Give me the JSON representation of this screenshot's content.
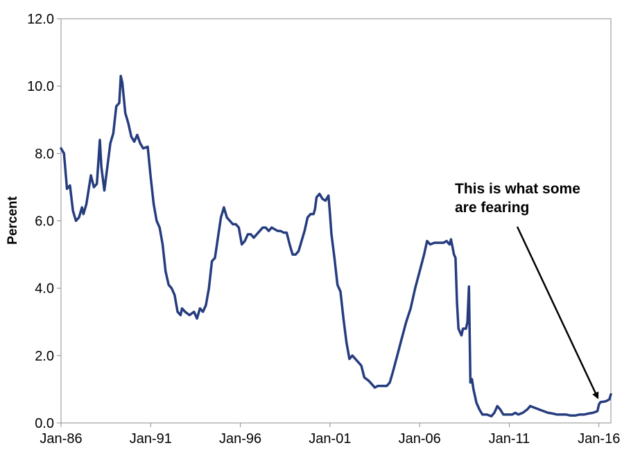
{
  "chart_data": {
    "type": "line",
    "title": "",
    "xlabel": "",
    "ylabel": "Percent",
    "ylim": [
      0,
      12
    ],
    "xlim": [
      "1986-01",
      "2016-09"
    ],
    "grid": false,
    "legend": "none",
    "yticks": [
      "0.0",
      "2.0",
      "4.0",
      "6.0",
      "8.0",
      "10.0",
      "12.0"
    ],
    "xticks": [
      "Jan-86",
      "Jan-91",
      "Jan-96",
      "Jan-01",
      "Jan-06",
      "Jan-11",
      "Jan-16"
    ],
    "annotation": {
      "lines": [
        "This is what some",
        "are fearing"
      ],
      "points_to": {
        "x": "2016-03",
        "y": 0.62
      }
    },
    "series": [
      {
        "color": "#253c7e",
        "points": [
          [
            "1986-01",
            8.15
          ],
          [
            "1986-03",
            8.0
          ],
          [
            "1986-05",
            6.95
          ],
          [
            "1986-07",
            7.05
          ],
          [
            "1986-09",
            6.3
          ],
          [
            "1986-11",
            6.0
          ],
          [
            "1987-01",
            6.1
          ],
          [
            "1987-03",
            6.4
          ],
          [
            "1987-04",
            6.2
          ],
          [
            "1987-06",
            6.5
          ],
          [
            "1987-09",
            7.35
          ],
          [
            "1987-11",
            7.0
          ],
          [
            "1988-01",
            7.1
          ],
          [
            "1988-03",
            8.4
          ],
          [
            "1988-04",
            7.6
          ],
          [
            "1988-06",
            6.9
          ],
          [
            "1988-08",
            7.6
          ],
          [
            "1988-10",
            8.3
          ],
          [
            "1988-12",
            8.6
          ],
          [
            "1989-02",
            9.4
          ],
          [
            "1989-04",
            9.5
          ],
          [
            "1989-05",
            10.3
          ],
          [
            "1989-06",
            10.1
          ],
          [
            "1989-08",
            9.2
          ],
          [
            "1989-10",
            8.9
          ],
          [
            "1989-12",
            8.5
          ],
          [
            "1990-02",
            8.35
          ],
          [
            "1990-04",
            8.55
          ],
          [
            "1990-06",
            8.3
          ],
          [
            "1990-08",
            8.15
          ],
          [
            "1990-11",
            8.2
          ],
          [
            "1991-01",
            7.3
          ],
          [
            "1991-03",
            6.5
          ],
          [
            "1991-05",
            6.0
          ],
          [
            "1991-07",
            5.8
          ],
          [
            "1991-09",
            5.3
          ],
          [
            "1991-11",
            4.5
          ],
          [
            "1992-01",
            4.1
          ],
          [
            "1992-03",
            4.0
          ],
          [
            "1992-05",
            3.8
          ],
          [
            "1992-07",
            3.3
          ],
          [
            "1992-09",
            3.2
          ],
          [
            "1992-10",
            3.4
          ],
          [
            "1992-12",
            3.3
          ],
          [
            "1993-03",
            3.2
          ],
          [
            "1993-06",
            3.3
          ],
          [
            "1993-08",
            3.1
          ],
          [
            "1993-10",
            3.4
          ],
          [
            "1993-12",
            3.3
          ],
          [
            "1994-02",
            3.5
          ],
          [
            "1994-04",
            4.0
          ],
          [
            "1994-06",
            4.8
          ],
          [
            "1994-08",
            4.9
          ],
          [
            "1994-10",
            5.5
          ],
          [
            "1994-12",
            6.1
          ],
          [
            "1995-02",
            6.4
          ],
          [
            "1995-04",
            6.1
          ],
          [
            "1995-06",
            6.0
          ],
          [
            "1995-08",
            5.9
          ],
          [
            "1995-10",
            5.9
          ],
          [
            "1995-12",
            5.8
          ],
          [
            "1996-02",
            5.3
          ],
          [
            "1996-04",
            5.4
          ],
          [
            "1996-06",
            5.6
          ],
          [
            "1996-08",
            5.6
          ],
          [
            "1996-10",
            5.5
          ],
          [
            "1996-12",
            5.6
          ],
          [
            "1997-02",
            5.7
          ],
          [
            "1997-04",
            5.8
          ],
          [
            "1997-06",
            5.8
          ],
          [
            "1997-08",
            5.7
          ],
          [
            "1997-10",
            5.8
          ],
          [
            "1997-12",
            5.75
          ],
          [
            "1998-02",
            5.7
          ],
          [
            "1998-04",
            5.7
          ],
          [
            "1998-06",
            5.65
          ],
          [
            "1998-08",
            5.65
          ],
          [
            "1998-10",
            5.3
          ],
          [
            "1998-12",
            5.0
          ],
          [
            "1999-02",
            5.0
          ],
          [
            "1999-04",
            5.1
          ],
          [
            "1999-06",
            5.4
          ],
          [
            "1999-08",
            5.7
          ],
          [
            "1999-10",
            6.1
          ],
          [
            "1999-12",
            6.2
          ],
          [
            "2000-02",
            6.2
          ],
          [
            "2000-03",
            6.35
          ],
          [
            "2000-04",
            6.7
          ],
          [
            "2000-06",
            6.8
          ],
          [
            "2000-08",
            6.65
          ],
          [
            "2000-10",
            6.6
          ],
          [
            "2000-12",
            6.75
          ],
          [
            "2001-01",
            6.2
          ],
          [
            "2001-02",
            5.6
          ],
          [
            "2001-04",
            4.9
          ],
          [
            "2001-06",
            4.1
          ],
          [
            "2001-08",
            3.9
          ],
          [
            "2001-10",
            3.1
          ],
          [
            "2001-12",
            2.4
          ],
          [
            "2002-02",
            1.9
          ],
          [
            "2002-04",
            2.0
          ],
          [
            "2002-06",
            1.9
          ],
          [
            "2002-08",
            1.8
          ],
          [
            "2002-10",
            1.7
          ],
          [
            "2002-12",
            1.35
          ],
          [
            "2003-03",
            1.25
          ],
          [
            "2003-05",
            1.15
          ],
          [
            "2003-07",
            1.05
          ],
          [
            "2003-09",
            1.1
          ],
          [
            "2003-12",
            1.1
          ],
          [
            "2004-03",
            1.1
          ],
          [
            "2004-05",
            1.2
          ],
          [
            "2004-07",
            1.5
          ],
          [
            "2004-10",
            2.0
          ],
          [
            "2005-01",
            2.5
          ],
          [
            "2005-04",
            3.0
          ],
          [
            "2005-07",
            3.4
          ],
          [
            "2005-10",
            4.0
          ],
          [
            "2006-01",
            4.5
          ],
          [
            "2006-04",
            5.0
          ],
          [
            "2006-06",
            5.4
          ],
          [
            "2006-08",
            5.3
          ],
          [
            "2006-11",
            5.35
          ],
          [
            "2007-02",
            5.35
          ],
          [
            "2007-05",
            5.35
          ],
          [
            "2007-07",
            5.4
          ],
          [
            "2007-09",
            5.3
          ],
          [
            "2007-10",
            5.45
          ],
          [
            "2007-12",
            5.0
          ],
          [
            "2008-01",
            4.9
          ],
          [
            "2008-02",
            3.6
          ],
          [
            "2008-03",
            2.8
          ],
          [
            "2008-05",
            2.6
          ],
          [
            "2008-06",
            2.8
          ],
          [
            "2008-08",
            2.8
          ],
          [
            "2008-09",
            3.0
          ],
          [
            "2008-10",
            4.05
          ],
          [
            "2008-11",
            1.2
          ],
          [
            "2008-12",
            1.3
          ],
          [
            "2009-01",
            1.0
          ],
          [
            "2009-03",
            0.6
          ],
          [
            "2009-05",
            0.4
          ],
          [
            "2009-07",
            0.25
          ],
          [
            "2009-10",
            0.25
          ],
          [
            "2010-01",
            0.2
          ],
          [
            "2010-03",
            0.3
          ],
          [
            "2010-05",
            0.5
          ],
          [
            "2010-07",
            0.4
          ],
          [
            "2010-09",
            0.25
          ],
          [
            "2010-12",
            0.25
          ],
          [
            "2011-03",
            0.25
          ],
          [
            "2011-05",
            0.3
          ],
          [
            "2011-07",
            0.25
          ],
          [
            "2011-10",
            0.3
          ],
          [
            "2012-01",
            0.4
          ],
          [
            "2012-03",
            0.5
          ],
          [
            "2012-06",
            0.45
          ],
          [
            "2012-09",
            0.4
          ],
          [
            "2012-12",
            0.35
          ],
          [
            "2013-03",
            0.3
          ],
          [
            "2013-06",
            0.28
          ],
          [
            "2013-09",
            0.25
          ],
          [
            "2013-12",
            0.25
          ],
          [
            "2014-03",
            0.25
          ],
          [
            "2014-06",
            0.22
          ],
          [
            "2014-09",
            0.22
          ],
          [
            "2014-12",
            0.25
          ],
          [
            "2015-03",
            0.25
          ],
          [
            "2015-06",
            0.28
          ],
          [
            "2015-09",
            0.3
          ],
          [
            "2015-12",
            0.35
          ],
          [
            "2016-01",
            0.55
          ],
          [
            "2016-02",
            0.62
          ],
          [
            "2016-04",
            0.63
          ],
          [
            "2016-06",
            0.65
          ],
          [
            "2016-08",
            0.7
          ],
          [
            "2016-09",
            0.85
          ]
        ]
      }
    ]
  }
}
